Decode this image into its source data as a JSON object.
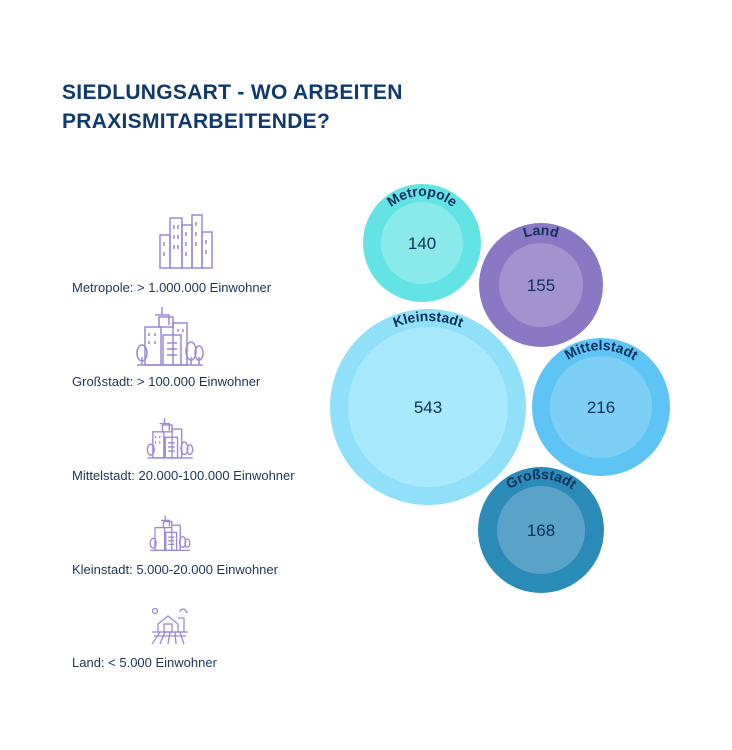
{
  "title_line1": "SIEDLUNGSART - WO ARBEITEN",
  "title_line2": "PRAXISMITARBEITENDE?",
  "legend": [
    {
      "icon": "metropolis-buildings-icon",
      "label": "Metropole: > 1.000.000 Einwohner"
    },
    {
      "icon": "big-city-icon",
      "label": "Großstadt: > 100.000 Einwohner"
    },
    {
      "icon": "medium-city-icon",
      "label": "Mittelstadt: 20.000-100.000 Einwohner"
    },
    {
      "icon": "small-town-icon",
      "label": "Kleinstadt: 5.000-20.000 Einwohner"
    },
    {
      "icon": "farm-icon",
      "label": "Land: < 5.000 Einwohner"
    }
  ],
  "chart_data": {
    "type": "bubble",
    "title": "SIEDLUNGSART - WO ARBEITEN PRAXISMITARBEITENDE?",
    "series": [
      {
        "name": "Metropole",
        "value": 140,
        "color": "#63e3e3",
        "inner_color": "#8ae9e9"
      },
      {
        "name": "Land",
        "value": 155,
        "color": "#8a78c4",
        "inner_color": "#a292cd"
      },
      {
        "name": "Kleinstadt",
        "value": 543,
        "color": "#8fe0f8",
        "inner_color": "#a8e9fb"
      },
      {
        "name": "Mittelstadt",
        "value": 216,
        "color": "#5ec3f5",
        "inner_color": "#7ecff6"
      },
      {
        "name": "Großstadt",
        "value": 168,
        "color": "#2b8bb8",
        "inner_color": "#5aa3c8"
      }
    ],
    "label_color": "#0f2f5c",
    "icon_color": "#9a8ad6"
  }
}
